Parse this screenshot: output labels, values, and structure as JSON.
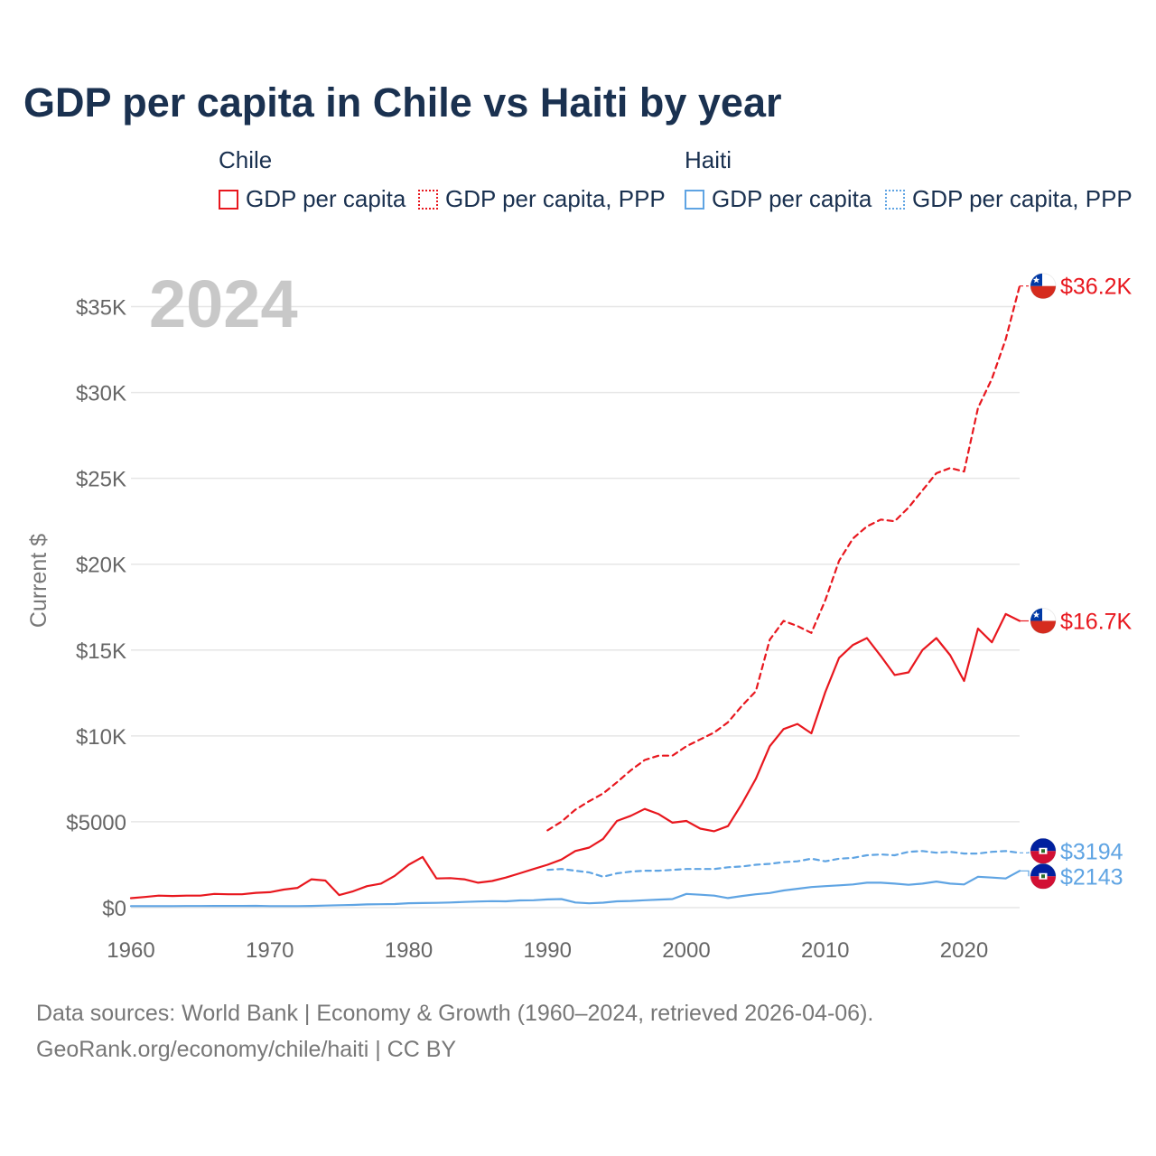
{
  "title": "GDP per capita in Chile vs Haiti by year",
  "legend": {
    "groups": [
      {
        "name": "Chile",
        "color": "#e8171e",
        "items": [
          {
            "label": "GDP per capita",
            "style": "solid"
          },
          {
            "label": "GDP per capita, PPP",
            "style": "dotted"
          }
        ]
      },
      {
        "name": "Haiti",
        "color": "#5fa4e3",
        "items": [
          {
            "label": "GDP per capita",
            "style": "solid"
          },
          {
            "label": "GDP per capita, PPP",
            "style": "dotted"
          }
        ]
      }
    ]
  },
  "footer": {
    "line1": "Data sources: World Bank | Economy & Growth (1960–2024, retrieved 2026-04-06).",
    "line2": "GeoRank.org/economy/chile/haiti | CC BY"
  },
  "chart_data": {
    "type": "line",
    "title": "GDP per capita in Chile vs Haiti by year",
    "xlabel": "",
    "ylabel": "Current $",
    "year_label": "2024",
    "xlim": [
      1960,
      2024
    ],
    "ylim": [
      0,
      36500
    ],
    "x_ticks": [
      1960,
      1970,
      1980,
      1990,
      2000,
      2010,
      2020
    ],
    "y_ticks": [
      {
        "value": 0,
        "label": "$0"
      },
      {
        "value": 5000,
        "label": "$5000"
      },
      {
        "value": 10000,
        "label": "$10K"
      },
      {
        "value": 15000,
        "label": "$15K"
      },
      {
        "value": 20000,
        "label": "$20K"
      },
      {
        "value": 25000,
        "label": "$25K"
      },
      {
        "value": 30000,
        "label": "$30K"
      },
      {
        "value": 35000,
        "label": "$35K"
      }
    ],
    "grid": true,
    "series": [
      {
        "name": "Chile GDP per capita",
        "country": "Chile",
        "color": "#e8171e",
        "dashed": false,
        "end_label": "$16.7K",
        "start_year": 1960,
        "values": [
          550,
          620,
          700,
          680,
          700,
          700,
          800,
          780,
          780,
          860,
          900,
          1050,
          1150,
          1650,
          1580,
          730,
          950,
          1250,
          1400,
          1850,
          2500,
          2950,
          1700,
          1720,
          1650,
          1450,
          1550,
          1750,
          2000,
          2250,
          2500,
          2800,
          3300,
          3500,
          4000,
          5050,
          5350,
          5750,
          5450,
          4950,
          5050,
          4600,
          4450,
          4750,
          6050,
          7500,
          9400,
          10400,
          10700,
          10150,
          12550,
          14550,
          15300,
          15700,
          14650,
          13550,
          13700,
          15000,
          15700,
          14700,
          13200,
          16250,
          15450,
          17100,
          16700
        ]
      },
      {
        "name": "Chile GDP per capita, PPP",
        "country": "Chile",
        "color": "#e8171e",
        "dashed": true,
        "end_label": "$36.2K",
        "start_year": 1990,
        "values": [
          4500,
          5000,
          5700,
          6200,
          6650,
          7300,
          8000,
          8600,
          8850,
          8850,
          9400,
          9800,
          10200,
          10800,
          11750,
          12600,
          15600,
          16700,
          16400,
          16000,
          17900,
          20200,
          21500,
          22200,
          22600,
          22500,
          23300,
          24300,
          25300,
          25600,
          25400,
          29100,
          30800,
          33100,
          36200
        ]
      },
      {
        "name": "Haiti GDP per capita",
        "country": "Haiti",
        "color": "#5fa4e3",
        "dashed": false,
        "end_label": "$2143",
        "start_year": 1960,
        "values": [
          90,
          90,
          90,
          90,
          95,
          95,
          100,
          100,
          100,
          105,
          90,
          90,
          90,
          100,
          120,
          140,
          160,
          190,
          200,
          210,
          260,
          270,
          280,
          300,
          330,
          360,
          380,
          370,
          420,
          430,
          480,
          500,
          300,
          250,
          290,
          370,
          390,
          430,
          470,
          500,
          800,
          750,
          700,
          560,
          680,
          780,
          850,
          1000,
          1100,
          1200,
          1250,
          1300,
          1350,
          1450,
          1450,
          1400,
          1330,
          1400,
          1520,
          1400,
          1350,
          1800,
          1750,
          1700,
          2143
        ]
      },
      {
        "name": "Haiti GDP per capita, PPP",
        "country": "Haiti",
        "color": "#5fa4e3",
        "dashed": true,
        "end_label": "$3194",
        "start_year": 1990,
        "values": [
          2200,
          2250,
          2150,
          2050,
          1800,
          2000,
          2100,
          2150,
          2150,
          2200,
          2250,
          2250,
          2250,
          2350,
          2400,
          2500,
          2550,
          2650,
          2700,
          2850,
          2700,
          2850,
          2900,
          3050,
          3100,
          3050,
          3250,
          3300,
          3200,
          3250,
          3150,
          3150,
          3250,
          3300,
          3194
        ]
      }
    ]
  }
}
